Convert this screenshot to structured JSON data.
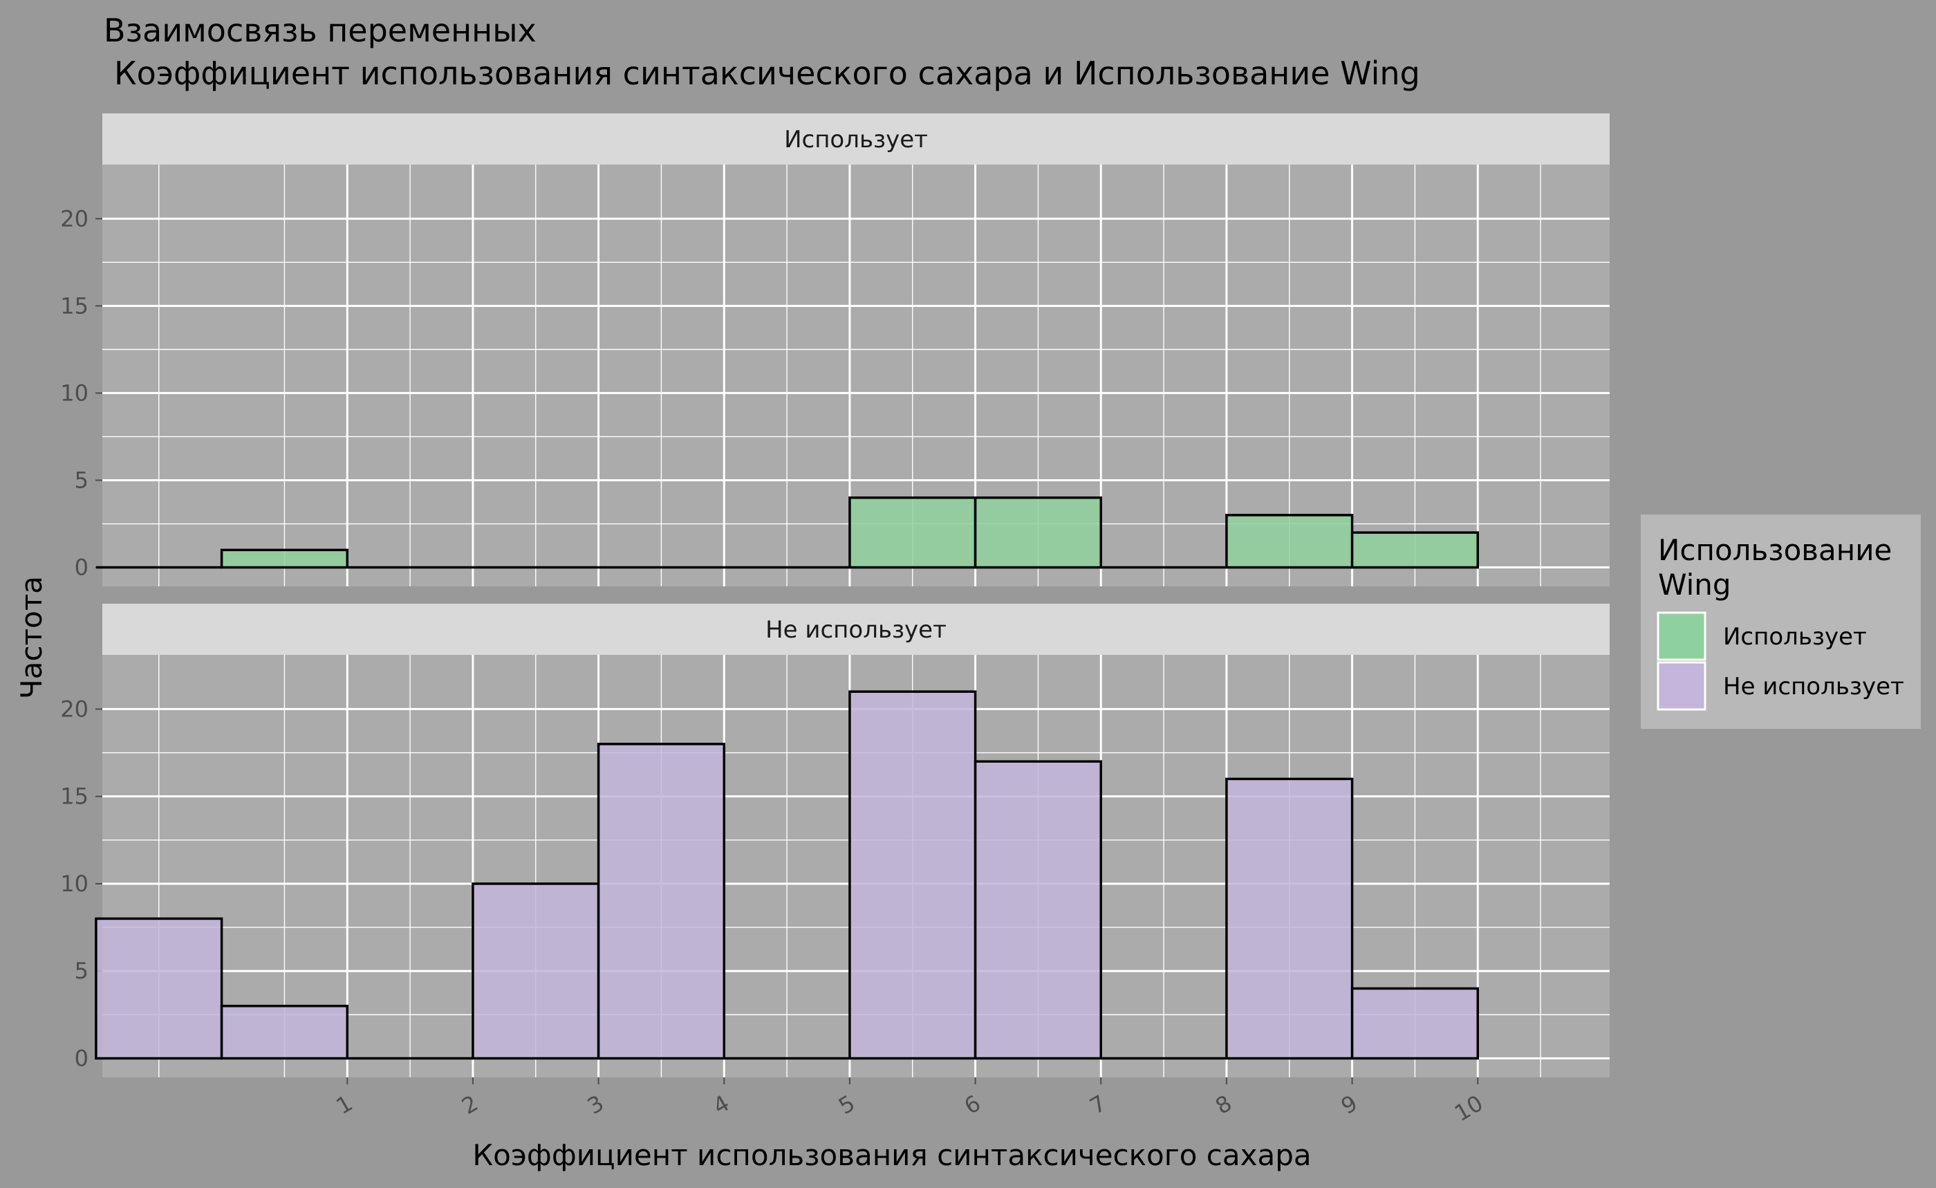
{
  "chart_data": {
    "type": "bar",
    "title_line1": "Взаимосвязь переменных",
    "title_line2": "Коэффициент использования синтаксического сахара и Использование Wing",
    "xlabel": "Коэффициент использования синтаксического сахара",
    "ylabel": "Частота",
    "x_tick_labels": [
      "1",
      "2",
      "3",
      "4",
      "5",
      "6",
      "7",
      "8",
      "9",
      "10"
    ],
    "y_ticks": [
      0,
      5,
      10,
      15,
      20
    ],
    "ylim": [
      0,
      22.5
    ],
    "bins": [
      "0",
      "1",
      "2",
      "3",
      "4",
      "5",
      "6",
      "7",
      "8",
      "9",
      "10"
    ],
    "legend_title": "Использование Wing",
    "legend_placement": "right",
    "panels": [
      {
        "strip": "Использует",
        "name": "Использует",
        "color": "#8fd19e",
        "values": [
          0,
          1,
          0,
          0,
          0,
          0,
          4,
          4,
          0,
          3,
          2
        ]
      },
      {
        "strip": "Не использует",
        "name": "Не использует",
        "color": "#c3b5db",
        "values": [
          8,
          3,
          0,
          10,
          18,
          0,
          21,
          17,
          0,
          16,
          4
        ]
      }
    ],
    "legend": [
      {
        "label": "Использует",
        "color": "#8fd19e"
      },
      {
        "label": "Не использует",
        "color": "#c3b5db"
      }
    ],
    "grid": true,
    "background_color": "#999999",
    "panel_color": "#ababab",
    "strip_color": "#d9d9d9"
  }
}
